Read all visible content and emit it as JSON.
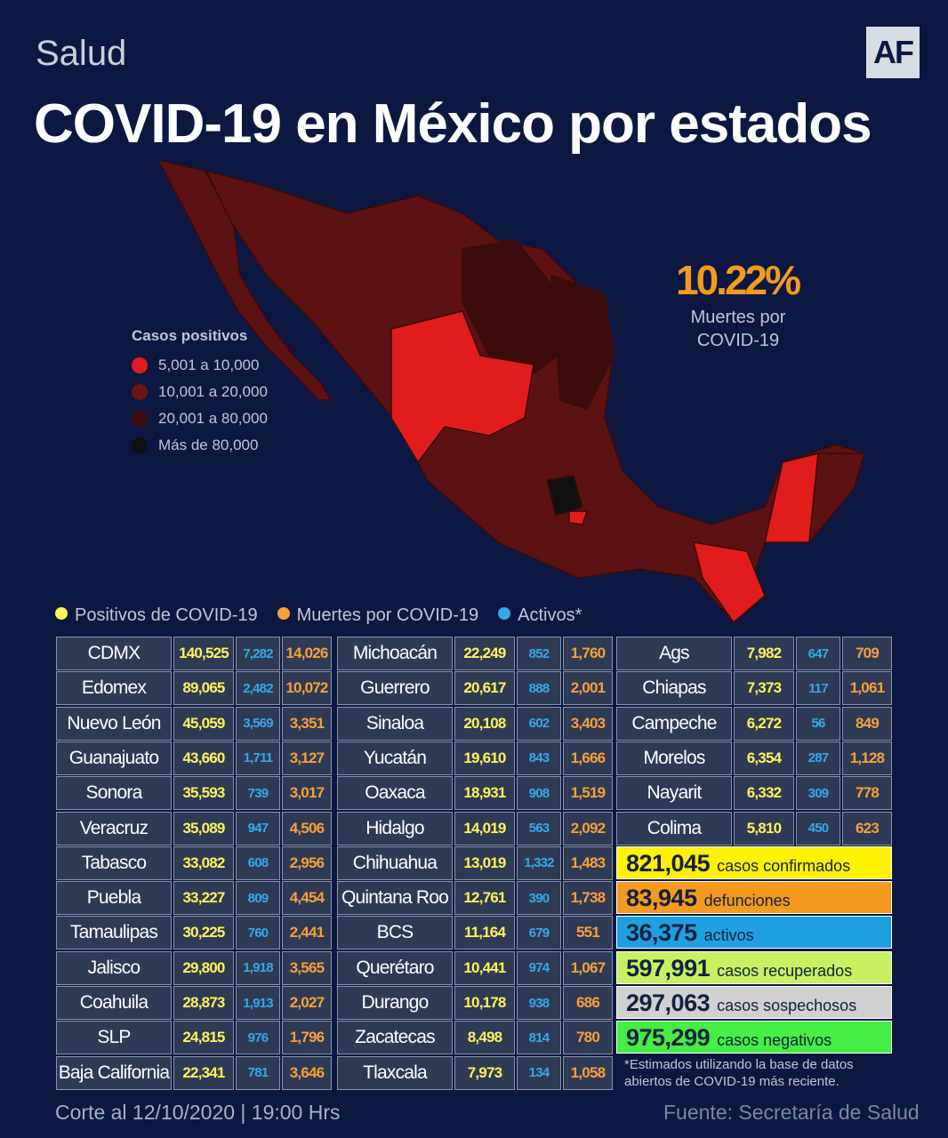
{
  "header": {
    "section": "Salud",
    "logo": "AF",
    "title": "COVID-19 en México por estados"
  },
  "stat": {
    "value": "10.22%",
    "label": [
      "Muertes por",
      "COVID-19"
    ]
  },
  "map_legend": {
    "title": "Casos positivos",
    "items": [
      "5,001 a 10,000",
      "10,001 a 20,000",
      "20,001 a 80,000",
      "Más de 80,000"
    ]
  },
  "table_legend": [
    "Positivos de COVID-19",
    "Muertes por COVID-19",
    "Activos*"
  ],
  "table": {
    "columns": [
      [
        [
          "CDMX",
          "140,525",
          "7,282",
          "14,026"
        ],
        [
          "Edomex",
          "89,065",
          "2,482",
          "10,072"
        ],
        [
          "Nuevo León",
          "45,059",
          "3,569",
          "3,351"
        ],
        [
          "Guanajuato",
          "43,660",
          "1,711",
          "3,127"
        ],
        [
          "Sonora",
          "35,593",
          "739",
          "3,017"
        ],
        [
          "Veracruz",
          "35,089",
          "947",
          "4,506"
        ],
        [
          "Tabasco",
          "33,082",
          "608",
          "2,956"
        ],
        [
          "Puebla",
          "33,227",
          "809",
          "4,454"
        ],
        [
          "Tamaulipas",
          "30,225",
          "760",
          "2,441"
        ],
        [
          "Jalisco",
          "29,800",
          "1,918",
          "3,565"
        ],
        [
          "Coahuila",
          "28,873",
          "1,913",
          "2,027"
        ],
        [
          "SLP",
          "24,815",
          "976",
          "1,796"
        ],
        [
          "Baja California",
          "22,341",
          "781",
          "3,646"
        ]
      ],
      [
        [
          "Michoacán",
          "22,249",
          "852",
          "1,760"
        ],
        [
          "Guerrero",
          "20,617",
          "888",
          "2,001"
        ],
        [
          "Sinaloa",
          "20,108",
          "602",
          "3,403"
        ],
        [
          "Yucatán",
          "19,610",
          "843",
          "1,666"
        ],
        [
          "Oaxaca",
          "18,931",
          "908",
          "1,519"
        ],
        [
          "Hidalgo",
          "14,019",
          "563",
          "2,092"
        ],
        [
          "Chihuahua",
          "13,019",
          "1,332",
          "1,483"
        ],
        [
          "Quintana Roo",
          "12,761",
          "390",
          "1,738"
        ],
        [
          "BCS",
          "11,164",
          "679",
          "551"
        ],
        [
          "Querétaro",
          "10,441",
          "974",
          "1,067"
        ],
        [
          "Durango",
          "10,178",
          "938",
          "686"
        ],
        [
          "Zacatecas",
          "8,498",
          "814",
          "780"
        ],
        [
          "Tlaxcala",
          "7,973",
          "134",
          "1,058"
        ]
      ],
      [
        [
          "Ags",
          "7,982",
          "647",
          "709"
        ],
        [
          "Chiapas",
          "7,373",
          "117",
          "1,061"
        ],
        [
          "Campeche",
          "6,272",
          "56",
          "849"
        ],
        [
          "Morelos",
          "6,354",
          "287",
          "1,128"
        ],
        [
          "Nayarit",
          "6,332",
          "309",
          "778"
        ],
        [
          "Colima",
          "5,810",
          "450",
          "623"
        ]
      ]
    ]
  },
  "totals": [
    {
      "value": "821,045",
      "label": "casos confirmados"
    },
    {
      "value": "83,945",
      "label": "defunciones"
    },
    {
      "value": "36,375",
      "label": "activos"
    },
    {
      "value": "597,991",
      "label": "casos recuperados"
    },
    {
      "value": "297,063",
      "label": "casos sospechosos"
    },
    {
      "value": "975,299",
      "label": "casos negativos"
    }
  ],
  "footnote": "*Estimados utilizando la base de datos abiertos de COVID-19 más reciente.",
  "footer": {
    "date": "Corte al 12/10/2020 | 19:00 Hrs",
    "source": "Fuente: Secretaría de Salud"
  }
}
